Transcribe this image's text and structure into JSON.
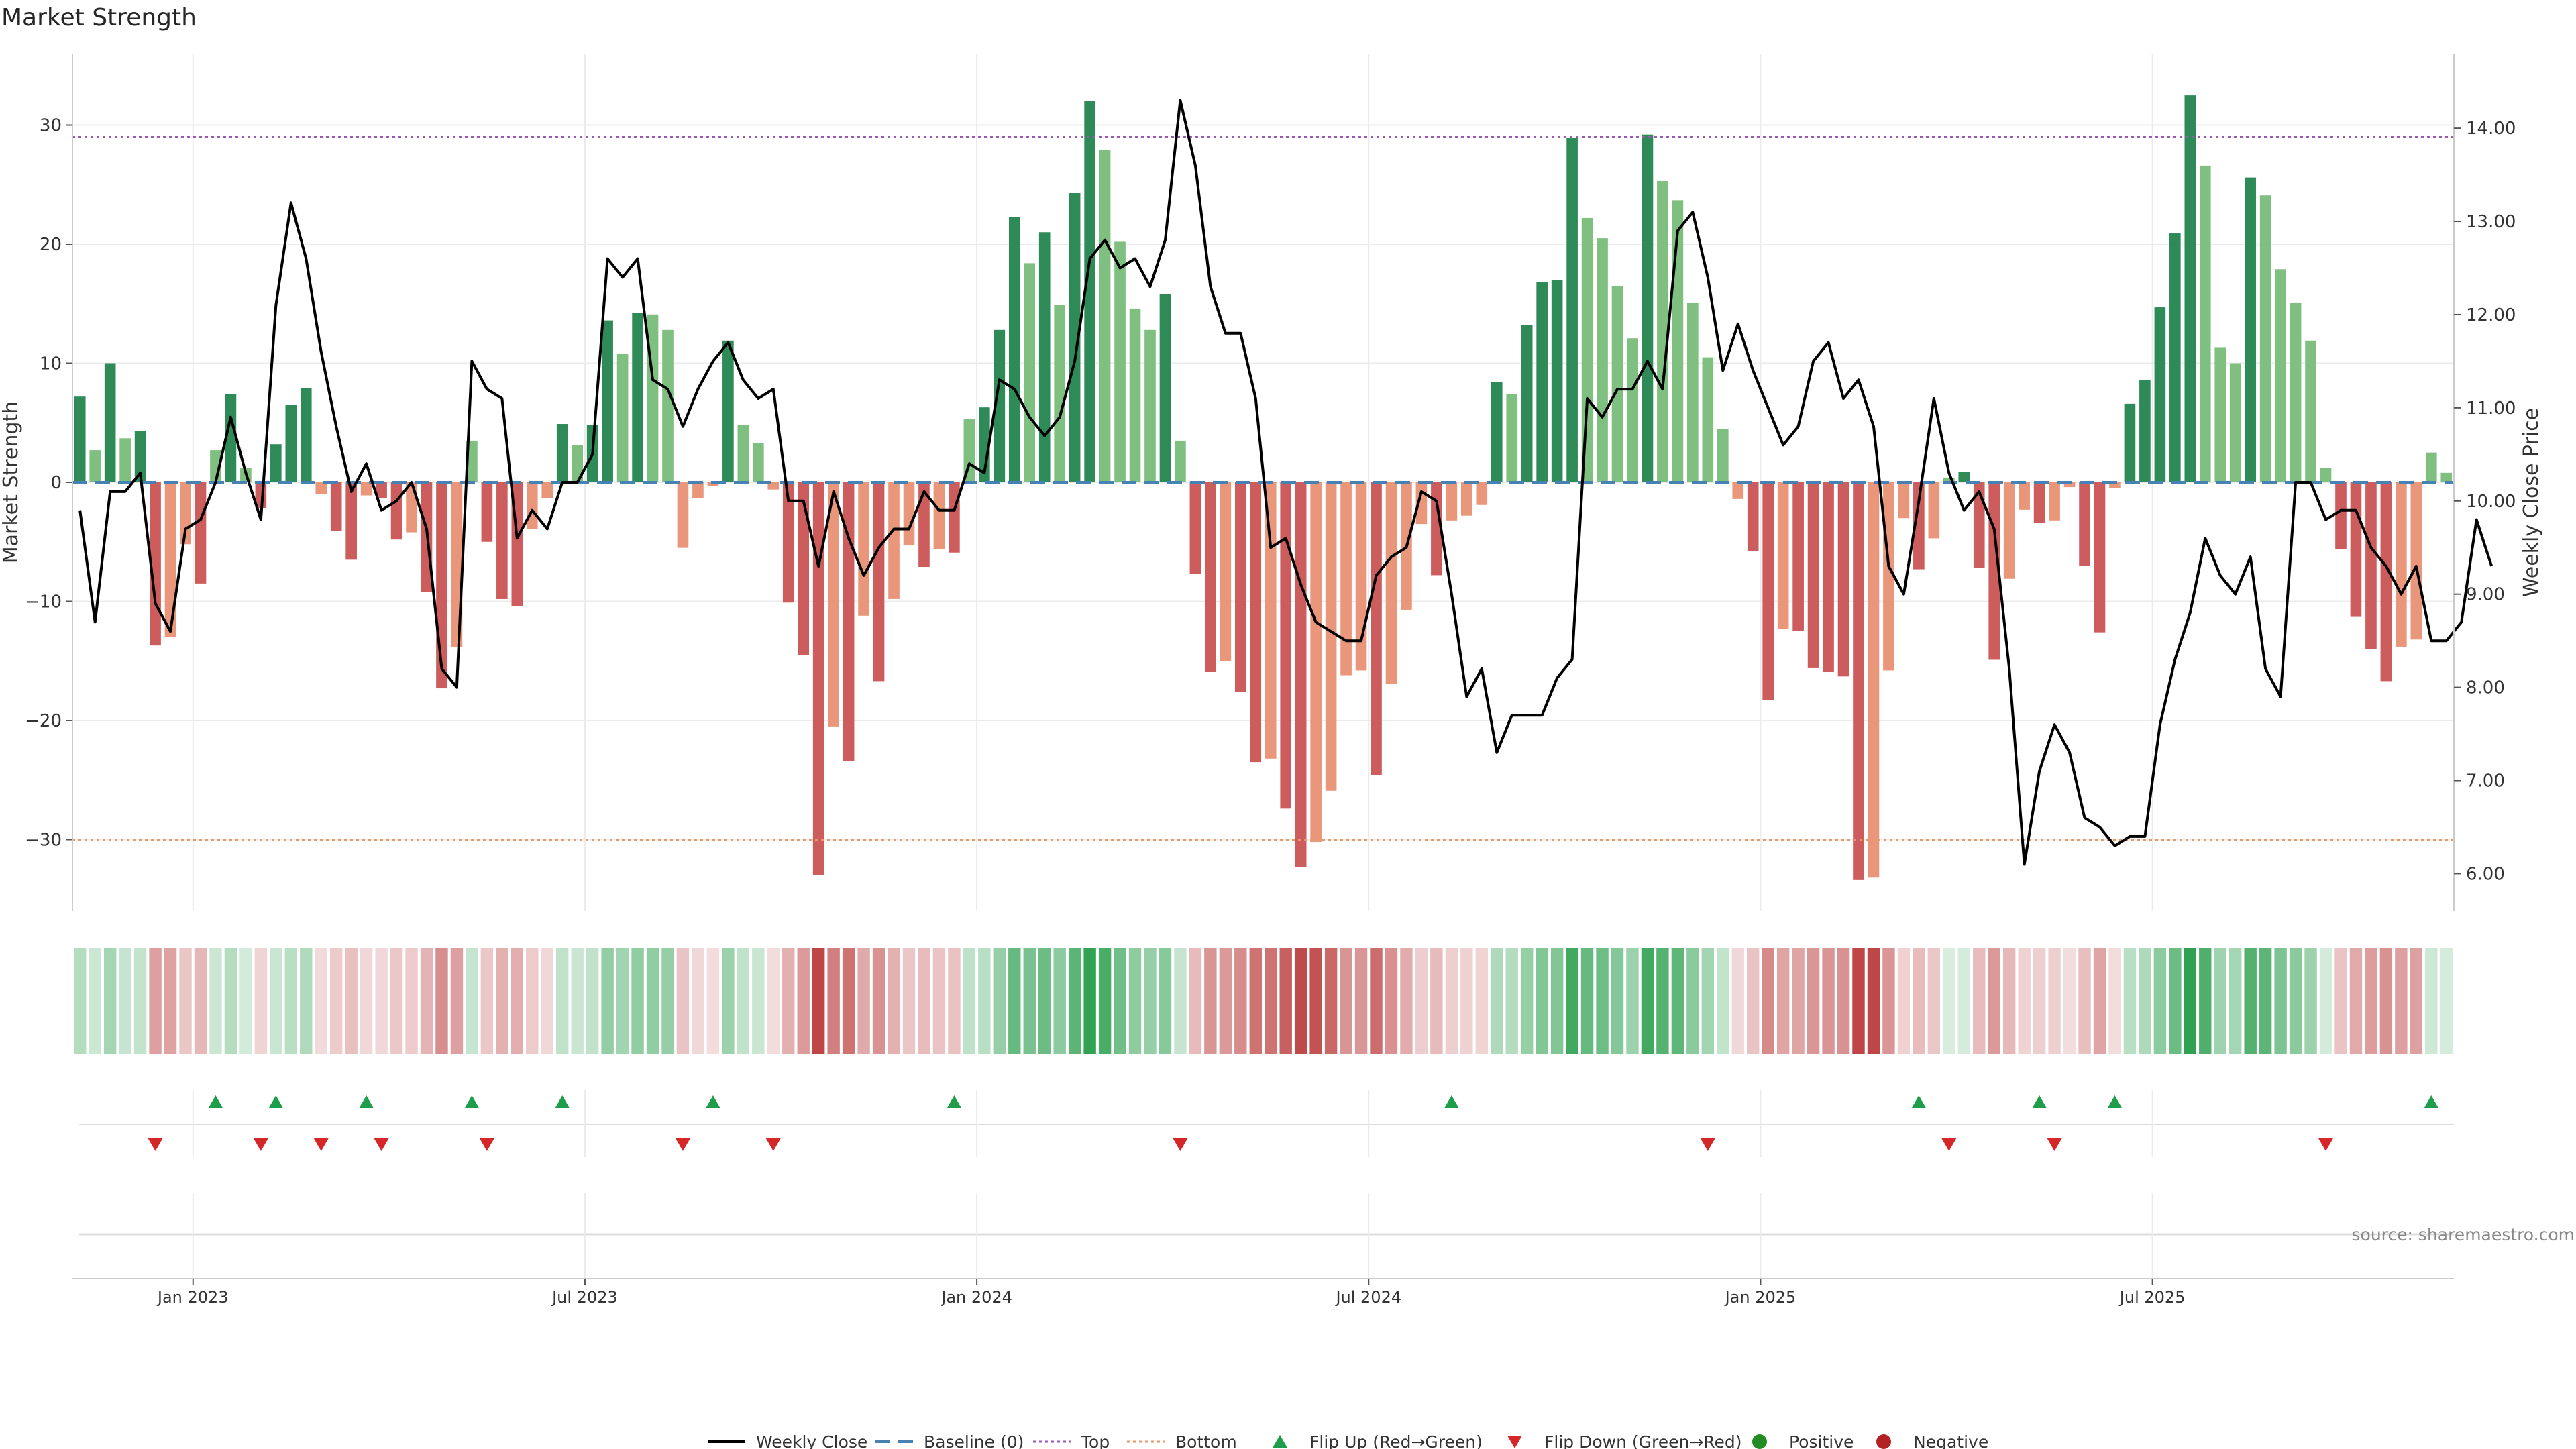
{
  "chart_data": {
    "type": "bar",
    "title": "Market Strength",
    "ylabel": "Market Strength",
    "y2label": "Weekly Close Price",
    "ylim": [
      -36,
      36
    ],
    "y2lim": [
      5.6,
      14.8
    ],
    "yticks": [
      30,
      20,
      10,
      0,
      -10,
      -20,
      -30
    ],
    "ytick_labels": [
      "30",
      "20",
      "10",
      "0",
      "−10",
      "−20",
      "−30"
    ],
    "y2ticks": [
      14,
      13,
      12,
      11,
      10,
      9,
      8,
      7,
      6
    ],
    "y2tick_labels": [
      "14.00",
      "13.00",
      "12.00",
      "11.00",
      "10.00",
      "9.00",
      "8.00",
      "7.00",
      "6.00"
    ],
    "xticks": [
      {
        "label": "Jan 2023",
        "index": 7.5
      },
      {
        "label": "Jul 2023",
        "index": 33.5
      },
      {
        "label": "Jan 2024",
        "index": 59.5
      },
      {
        "label": "Jul 2024",
        "index": 85.5
      },
      {
        "label": "Jan 2025",
        "index": 111.5
      },
      {
        "label": "Jul 2025",
        "index": 137.5
      }
    ],
    "top_level": 29,
    "bottom_level": -30,
    "grid": true,
    "values": [
      7.2,
      2.7,
      10,
      3.7,
      4.3,
      -13.7,
      -13,
      -5.2,
      -8.5,
      2.7,
      7.4,
      1.2,
      -2.2,
      3.2,
      6.5,
      7.9,
      -1,
      -4.1,
      -6.5,
      -1.1,
      -1.3,
      -4.8,
      -4.2,
      -9.2,
      -17.3,
      -13.8,
      3.5,
      -5,
      -9.8,
      -10.4,
      -3.9,
      -1.3,
      4.9,
      3.1,
      4.8,
      13.6,
      10.8,
      14.2,
      14.1,
      12.8,
      -5.5,
      -1.3,
      -0.3,
      11.9,
      4.8,
      3.3,
      -0.6,
      -10.1,
      -14.5,
      -33,
      -20.5,
      -23.4,
      -11.2,
      -16.7,
      -9.8,
      -5.3,
      -7.1,
      -5.6,
      -5.9,
      5.3,
      6.3,
      12.8,
      22.3,
      18.4,
      21,
      14.9,
      24.3,
      32,
      27.9,
      20.2,
      14.6,
      12.8,
      15.8,
      3.5,
      -7.7,
      -15.9,
      -15,
      -17.6,
      -23.5,
      -23.2,
      -27.4,
      -32.3,
      -30.2,
      -25.9,
      -16.2,
      -15.8,
      -24.6,
      -16.9,
      -10.7,
      -3.5,
      -7.8,
      -3.2,
      -2.8,
      -1.9,
      8.4,
      7.4,
      13.2,
      16.8,
      17,
      28.9,
      22.2,
      20.5,
      16.5,
      12.1,
      29.2,
      25.3,
      23.7,
      15.1,
      10.5,
      4.5,
      -1.4,
      -5.8,
      -18.3,
      -12.3,
      -12.5,
      -15.6,
      -15.9,
      -16.3,
      -33.4,
      -33.2,
      -15.8,
      -3,
      -7.3,
      -4.7,
      0.4,
      0.9,
      -7.2,
      -14.9,
      -8.1,
      -2.3,
      -3.4,
      -3.2,
      -0.4,
      -7,
      -12.6,
      -0.5,
      6.6,
      8.6,
      14.7,
      20.9,
      32.5,
      26.6,
      11.3,
      10,
      25.6,
      24.1,
      17.9,
      15.1,
      11.9,
      1.2,
      -5.6,
      -11.3,
      -14,
      -16.7,
      -13.8,
      -13.2,
      2.5,
      0.8
    ],
    "weekly_close": [
      9.9,
      8.7,
      10.1,
      10.1,
      10.3,
      8.9,
      8.6,
      9.7,
      9.8,
      10.2,
      10.9,
      10.3,
      9.8,
      12.1,
      13.2,
      12.6,
      11.6,
      10.8,
      10.1,
      10.4,
      9.9,
      10,
      10.2,
      9.7,
      8.2,
      8,
      11.5,
      11.2,
      11.1,
      9.6,
      9.9,
      9.7,
      10.2,
      10.2,
      10.5,
      12.6,
      12.4,
      12.6,
      11.3,
      11.2,
      10.8,
      11.2,
      11.5,
      11.7,
      11.3,
      11.1,
      11.2,
      10,
      10,
      9.3,
      10.1,
      9.6,
      9.2,
      9.5,
      9.7,
      9.7,
      10.1,
      9.9,
      9.9,
      10.4,
      10.3,
      11.3,
      11.2,
      10.9,
      10.7,
      10.9,
      11.5,
      12.6,
      12.8,
      12.5,
      12.6,
      12.3,
      12.8,
      14.3,
      13.6,
      12.3,
      11.8,
      11.8,
      11.1,
      9.5,
      9.6,
      9.1,
      8.7,
      8.6,
      8.5,
      8.5,
      9.2,
      9.4,
      9.5,
      10.1,
      10,
      9,
      7.9,
      8.2,
      7.3,
      7.7,
      7.7,
      7.7,
      8.1,
      8.3,
      11.1,
      10.9,
      11.2,
      11.2,
      11.5,
      11.2,
      12.9,
      13.1,
      12.4,
      11.4,
      11.9,
      11.4,
      11,
      10.6,
      10.8,
      11.5,
      11.7,
      11.1,
      11.3,
      10.8,
      9.3,
      9,
      10,
      11.1,
      10.3,
      9.9,
      10.1,
      9.7,
      8.2,
      6.1,
      7.1,
      7.6,
      7.3,
      6.6,
      6.5,
      6.3,
      6.4,
      6.4,
      7.6,
      8.3,
      8.8,
      9.6,
      9.2,
      9,
      9.4,
      8.2,
      7.9,
      10.2,
      10.2,
      9.8,
      9.9,
      9.9,
      9.5,
      9.3,
      9,
      9.3,
      8.5,
      8.5,
      8.7,
      9.8,
      9.3
    ],
    "flip_up_indices": [
      9,
      13,
      19,
      26,
      32,
      42,
      58,
      91,
      122,
      130,
      135,
      156
    ],
    "flip_down_indices": [
      5,
      12,
      16,
      20,
      27,
      40,
      46,
      73,
      108,
      124,
      131,
      149
    ],
    "series": [
      {
        "name": "Weekly Close"
      },
      {
        "name": "Baseline (0)"
      },
      {
        "name": "Top"
      },
      {
        "name": "Bottom"
      },
      {
        "name": "Flip Up (Red→Green)"
      },
      {
        "name": "Flip Down (Green→Red)"
      },
      {
        "name": "Positive"
      },
      {
        "name": "Negative"
      }
    ],
    "legend_position": "bottom-center",
    "annotation": "source: sharemaestro.com"
  },
  "colors": {
    "positive_dark": "#2e8b57",
    "positive_light": "#7fbf7f",
    "negative_dark": "#cd5c5c",
    "negative_light": "#e9967a",
    "close_line": "#000000",
    "baseline": "#4682b4",
    "top": "#9b59b6",
    "bottom": "#e39b6a",
    "flip_up": "#1e9e4a",
    "flip_down": "#d62728",
    "legend_positive": "#228b22",
    "legend_negative": "#b22222",
    "grid": "#ebebeb",
    "axis": "#cccccc"
  }
}
